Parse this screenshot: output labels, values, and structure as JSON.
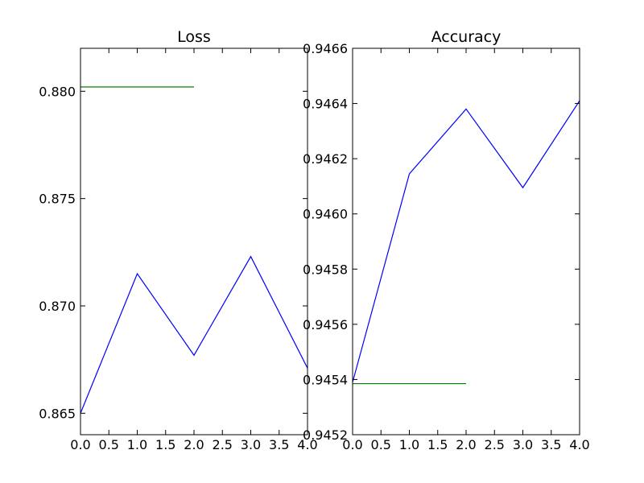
{
  "chart_data": [
    {
      "type": "line",
      "title": "Loss",
      "xlabel": "",
      "ylabel": "",
      "xlim": [
        0,
        4
      ],
      "ylim": [
        0.864,
        0.882
      ],
      "x_ticks": [
        0,
        0.5,
        1,
        1.5,
        2,
        2.5,
        3,
        3.5,
        4
      ],
      "x_tick_labels": [
        "0.0",
        "0.5",
        "1.0",
        "1.5",
        "2.0",
        "2.5",
        "3.0",
        "3.5",
        "4.0"
      ],
      "y_ticks": [
        0.865,
        0.87,
        0.875,
        0.88
      ],
      "y_tick_labels": [
        "0.865",
        "0.870",
        "0.875",
        "0.880"
      ],
      "grid": false,
      "series": [
        {
          "color": "#0000ff",
          "x": [
            0,
            1,
            2,
            3,
            4
          ],
          "y": [
            0.865,
            0.8715,
            0.8677,
            0.8723,
            0.8671
          ]
        },
        {
          "color": "#008000",
          "x": [
            0,
            1,
            2
          ],
          "y": [
            0.8802,
            0.8802,
            0.8802
          ]
        }
      ]
    },
    {
      "type": "line",
      "title": "Accuracy",
      "xlabel": "",
      "ylabel": "",
      "xlim": [
        0,
        4
      ],
      "ylim": [
        0.9452,
        0.9466
      ],
      "x_ticks": [
        0,
        0.5,
        1,
        1.5,
        2,
        2.5,
        3,
        3.5,
        4
      ],
      "x_tick_labels": [
        "0.0",
        "0.5",
        "1.0",
        "1.5",
        "2.0",
        "2.5",
        "3.0",
        "3.5",
        "4.0"
      ],
      "y_ticks": [
        0.9452,
        0.9454,
        0.9456,
        0.9458,
        0.946,
        0.9462,
        0.9464,
        0.9466
      ],
      "y_tick_labels": [
        "0.9452",
        "0.9454",
        "0.9456",
        "0.9458",
        "0.9460",
        "0.9462",
        "0.9464",
        "0.9466"
      ],
      "grid": false,
      "series": [
        {
          "color": "#0000ff",
          "x": [
            0,
            1,
            2,
            3,
            4
          ],
          "y": [
            0.94539,
            0.946145,
            0.94638,
            0.946095,
            0.94641
          ]
        },
        {
          "color": "#008000",
          "x": [
            0,
            1,
            2
          ],
          "y": [
            0.945385,
            0.945385,
            0.945385
          ]
        }
      ]
    }
  ]
}
